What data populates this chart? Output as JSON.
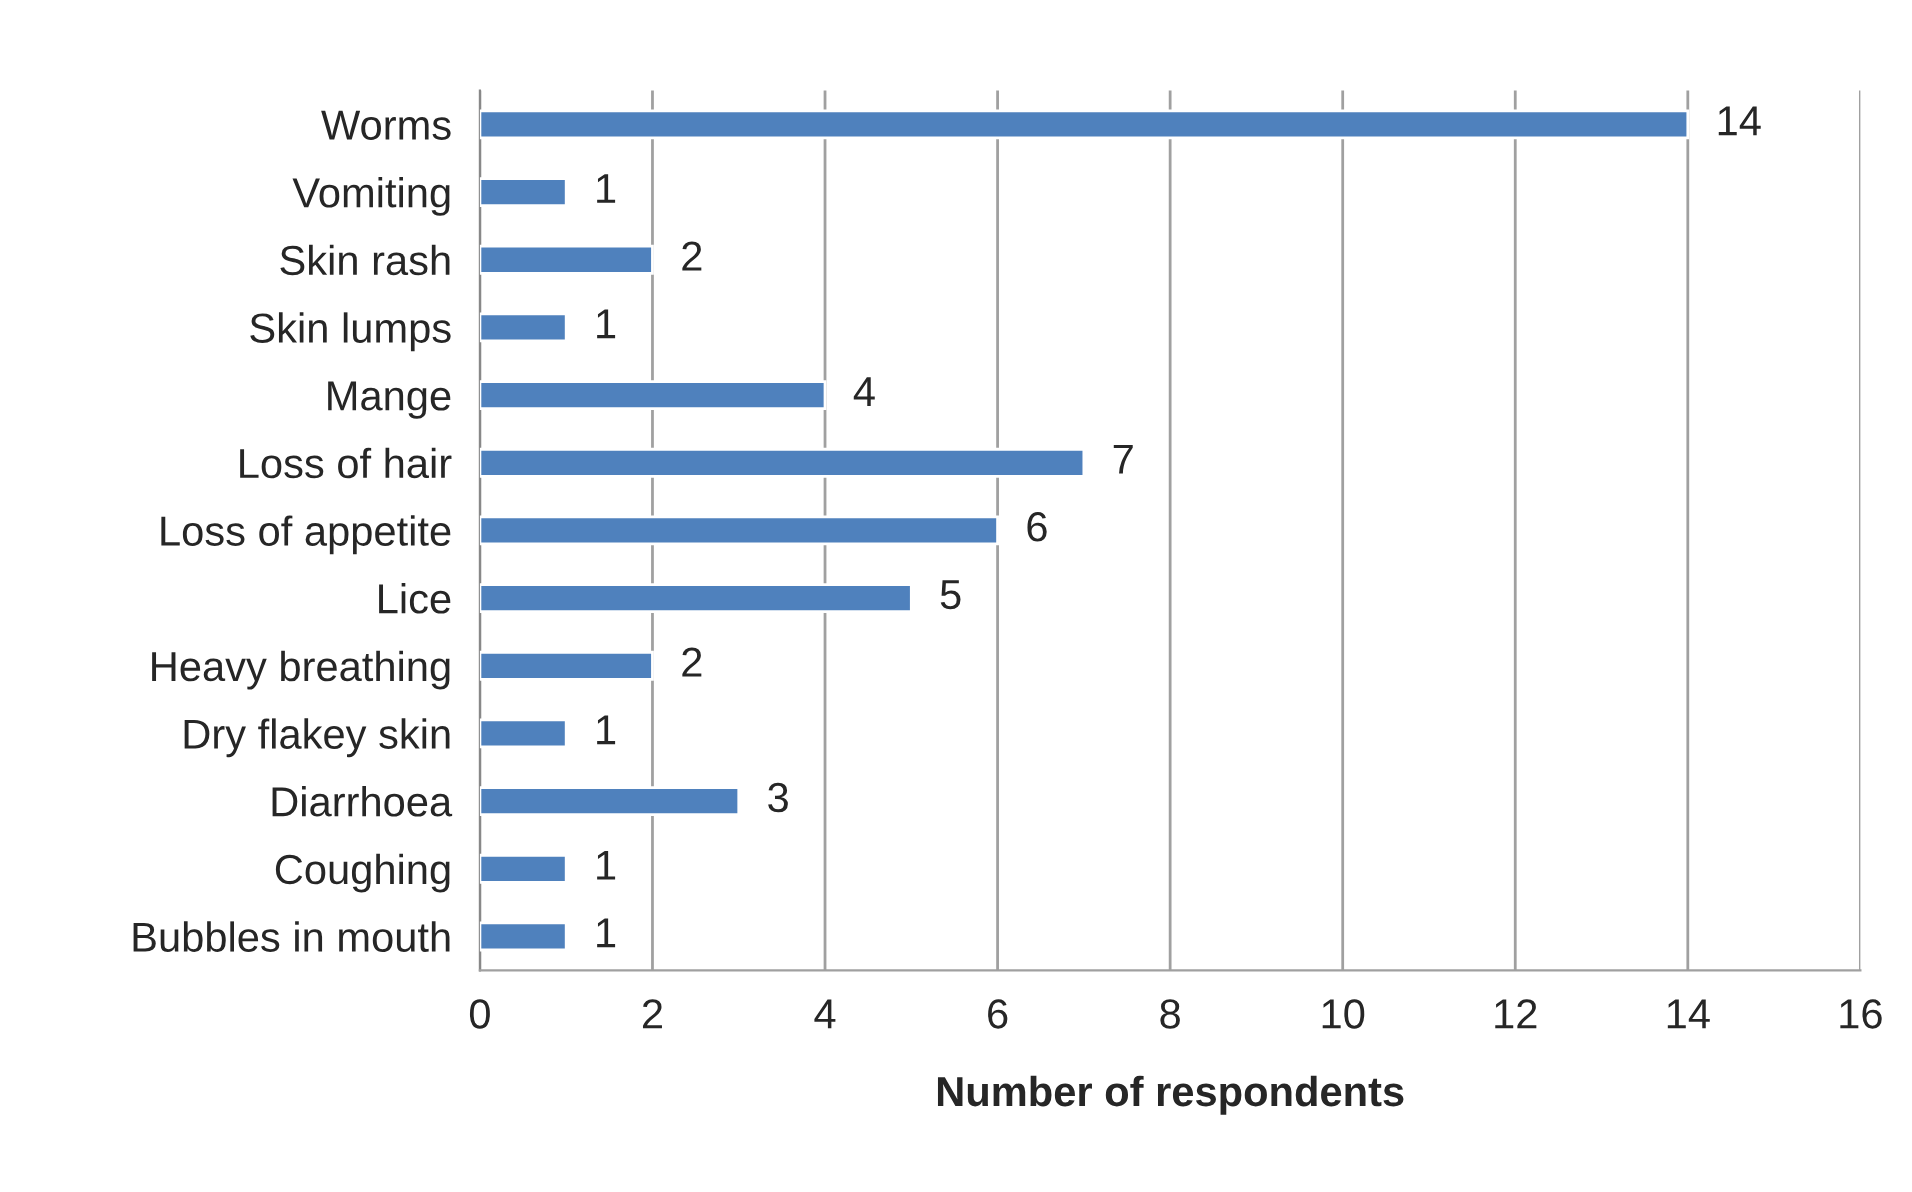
{
  "chart_data": {
    "type": "bar",
    "orientation": "horizontal",
    "categories": [
      "Worms",
      "Vomiting",
      "Skin rash",
      "Skin lumps",
      "Mange",
      "Loss of hair",
      "Loss of appetite",
      "Lice",
      "Heavy breathing",
      "Dry flakey skin",
      "Diarrhoea",
      "Coughing",
      "Bubbles in mouth"
    ],
    "values": [
      14,
      1,
      2,
      1,
      4,
      7,
      6,
      5,
      2,
      1,
      3,
      1,
      1
    ],
    "color": "#4f81bd",
    "xlabel": "Number of respondents",
    "xlim": [
      0,
      16
    ],
    "xticks": [
      0,
      2,
      4,
      6,
      8,
      10,
      12,
      14,
      16
    ],
    "grid": "x",
    "data_labels": true,
    "legend": false
  }
}
